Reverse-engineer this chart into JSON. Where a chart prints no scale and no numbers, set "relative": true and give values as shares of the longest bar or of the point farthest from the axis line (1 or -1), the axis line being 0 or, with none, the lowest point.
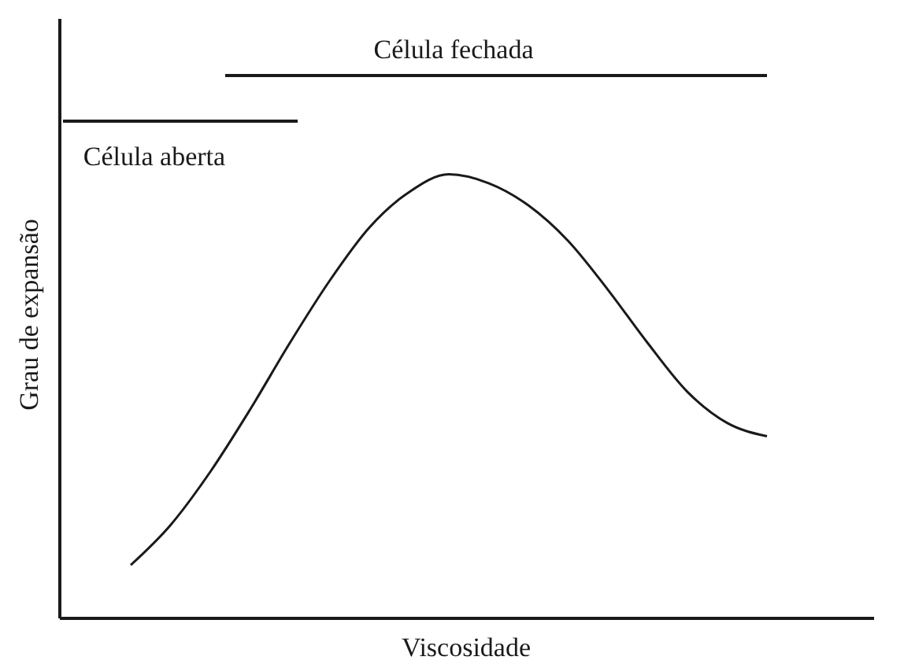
{
  "chart_data": {
    "type": "line",
    "relative": true,
    "xlabel": "Viscosidade",
    "ylabel": "Grau de expansão",
    "categories": [
      null,
      null,
      null,
      null,
      null,
      null,
      null,
      null,
      null,
      null,
      null,
      null,
      null,
      null,
      null,
      null,
      null
    ],
    "series": [
      {
        "color": "#1a1a1a",
        "values": [
          0.12,
          0.21,
          0.33,
          0.47,
          0.62,
          0.76,
          0.88,
          0.96,
          1.0,
          0.98,
          0.93,
          0.85,
          0.74,
          0.62,
          0.51,
          0.44,
          0.41
        ]
      }
    ],
    "annotations": [
      "Célula aberta",
      "Célula fechada"
    ],
    "grid": false,
    "legend": false,
    "marker": "none",
    "line_style": "solid"
  }
}
